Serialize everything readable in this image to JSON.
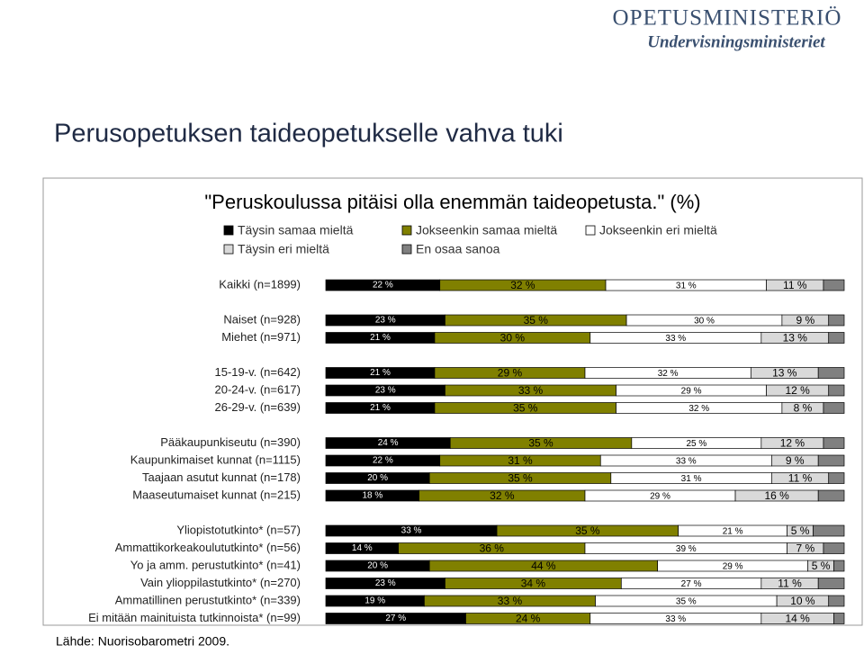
{
  "logo": {
    "title": "OPETUSMINISTERIÖ",
    "subtitle": "Undervisningsministeriet"
  },
  "slide_title": "Perusopetuksen taideopetukselle vahva tuki",
  "source": "Lähde: Nuorisobarometri 2009.",
  "chart_data": {
    "type": "stacked-barh",
    "title": "\"Peruskoulussa pitäisi olla enemmän taideopetusta.\" (%)",
    "xlim": [
      0,
      100
    ],
    "categories": [
      "Kaikki (n=1899)",
      null,
      "Naiset (n=928)",
      "Miehet (n=971)",
      null,
      "15-19-v. (n=642)",
      "20-24-v. (n=617)",
      "26-29-v. (n=639)",
      null,
      "Pääkaupunkiseutu (n=390)",
      "Kaupunkimaiset kunnat (n=1115)",
      "Taajaan asutut kunnat (n=178)",
      "Maaseutumaiset kunnat (n=215)",
      null,
      "Yliopistotutkinto* (n=57)",
      "Ammattikorkeakoulututkinto* (n=56)",
      "Yo ja amm. perustutkinto* (n=41)",
      "Vain ylioppilastutkinto* (n=270)",
      "Ammatillinen perustutkinto* (n=339)",
      "Ei mitään mainituista tutkinnoista* (n=99)"
    ],
    "series": [
      {
        "name": "Täysin samaa mieltä",
        "color": "#000000",
        "values": [
          22,
          null,
          23,
          21,
          null,
          21,
          23,
          21,
          null,
          24,
          22,
          20,
          18,
          null,
          33,
          14,
          20,
          23,
          19,
          27
        ],
        "value_labels": [
          "22 %",
          null,
          "23 %",
          "21 %",
          null,
          "21 %",
          "23 %",
          "21 %",
          null,
          "24 %",
          "22 %",
          "20 %",
          "18 %",
          null,
          "33 %",
          "14 %",
          "20 %",
          "23 %",
          "19 %",
          "27 %"
        ]
      },
      {
        "name": "Jokseenkin samaa mieltä",
        "color": "#808000",
        "values": [
          32,
          null,
          35,
          30,
          null,
          29,
          33,
          35,
          null,
          35,
          31,
          35,
          32,
          null,
          35,
          36,
          44,
          34,
          33,
          24
        ],
        "value_labels": [
          "32 %",
          null,
          "35 %",
          "30 %",
          null,
          "29 %",
          "33 %",
          "35 %",
          null,
          "35 %",
          "31 %",
          "35 %",
          "32 %",
          null,
          "35 %",
          "36 %",
          "44 %",
          "34 %",
          "33 %",
          "24 %"
        ]
      },
      {
        "name": "Jokseenkin eri mieltä",
        "color": "#ffffff",
        "values": [
          31,
          null,
          30,
          33,
          null,
          32,
          29,
          32,
          null,
          25,
          33,
          31,
          29,
          null,
          21,
          39,
          29,
          27,
          35,
          33
        ],
        "value_labels": [
          "31 %",
          null,
          "30 %",
          "33 %",
          null,
          "32 %",
          "29 %",
          "32 %",
          null,
          "25 %",
          "33 %",
          "31 %",
          "29 %",
          null,
          "21 %",
          "39 %",
          "29 %",
          "27 %",
          "35 %",
          "33 %"
        ]
      },
      {
        "name": "Täysin eri mieltä",
        "color": "#d9d9d9",
        "values": [
          11,
          null,
          9,
          13,
          null,
          13,
          12,
          8,
          null,
          12,
          9,
          11,
          16,
          null,
          5,
          7,
          5,
          11,
          10,
          14
        ],
        "value_labels": [
          "11 %",
          null,
          "9 %",
          "13 %",
          null,
          "13 %",
          "12 %",
          "8 %",
          null,
          "12 %",
          "9 %",
          "11 %",
          "16 %",
          null,
          "5 %",
          "7 %",
          "5 %",
          "11 %",
          "10 %",
          "14 %"
        ]
      },
      {
        "name": "En osaa sanoa",
        "color": "#808080",
        "values": [
          4,
          null,
          3,
          3,
          null,
          5,
          3,
          4,
          null,
          4,
          5,
          3,
          5,
          null,
          6,
          4,
          2,
          5,
          3,
          2
        ]
      }
    ]
  }
}
